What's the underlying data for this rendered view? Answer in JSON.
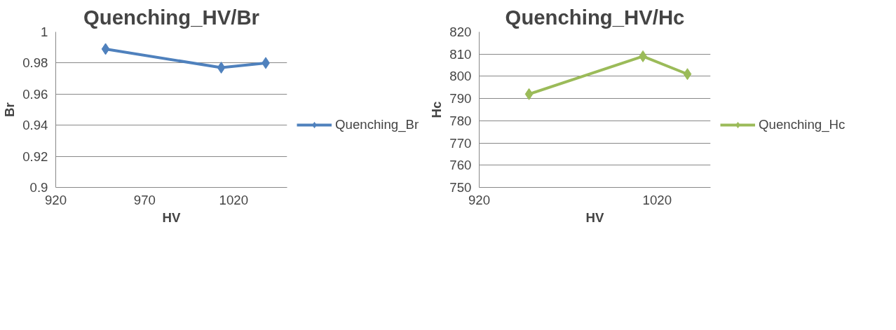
{
  "chart_data": [
    {
      "type": "line",
      "title": "Quenching_HV/Br",
      "xlabel": "HV",
      "ylabel": "Br",
      "x": [
        948,
        1013,
        1038
      ],
      "series": [
        {
          "name": "Quenching_Br",
          "color": "#4f81bd",
          "values": [
            0.989,
            0.977,
            0.98
          ]
        }
      ],
      "xlim": [
        920,
        1050
      ],
      "xticks": [
        920,
        970,
        1020
      ],
      "ylim": [
        0.9,
        1
      ],
      "yticks": [
        {
          "value": 0.9,
          "label": "0.9"
        },
        {
          "value": 0.92,
          "label": "0.92"
        },
        {
          "value": 0.94,
          "label": "0.94"
        },
        {
          "value": 0.96,
          "label": "0.96"
        },
        {
          "value": 0.98,
          "label": "0.98"
        },
        {
          "value": 1,
          "label": "1"
        }
      ],
      "grid": "y",
      "legend": "right",
      "marker": "diamond",
      "line_style": "solid"
    },
    {
      "type": "line",
      "title": "Quenching_HV/Hc",
      "xlabel": "HV",
      "ylabel": "Hc",
      "x": [
        948,
        1012,
        1037
      ],
      "series": [
        {
          "name": "Quenching_Hc",
          "color": "#9bbb59",
          "values": [
            792,
            809,
            801
          ]
        }
      ],
      "xlim": [
        920,
        1050
      ],
      "xticks": [
        920,
        1020
      ],
      "ylim": [
        750,
        820
      ],
      "yticks": [
        750,
        760,
        770,
        780,
        790,
        800,
        810,
        820
      ],
      "grid": "y",
      "legend": "right",
      "marker": "diamond",
      "line_style": "solid"
    }
  ]
}
